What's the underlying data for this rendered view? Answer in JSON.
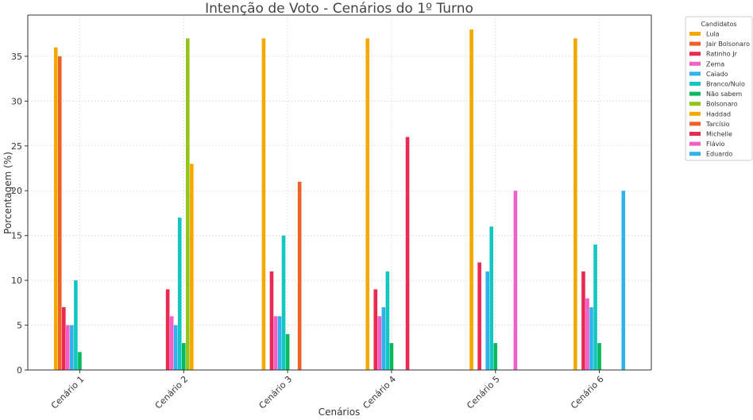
{
  "chart_data": {
    "type": "bar",
    "title": "Intenção de Voto - Cenários do 1º Turno",
    "xlabel": "Cenários",
    "ylabel": "Porcentagem (%)",
    "ylim": [
      0,
      39.6
    ],
    "yticks": [
      0,
      5,
      10,
      15,
      20,
      25,
      30,
      35
    ],
    "grid": true,
    "legend_title": "Candidatos",
    "legend_position": "outside-top-right",
    "categories": [
      "Cenário 1",
      "Cenário 2",
      "Cenário 3",
      "Cenário 4",
      "Cenário 5",
      "Cenário 6"
    ],
    "series": [
      {
        "name": "Lula",
        "color": "#f5a800",
        "values": [
          36,
          null,
          37,
          37,
          38,
          37
        ]
      },
      {
        "name": "Jair Bolsonaro",
        "color": "#f0612a",
        "values": [
          35,
          null,
          null,
          null,
          null,
          null
        ]
      },
      {
        "name": "Ratinho Jr",
        "color": "#ea2a50",
        "values": [
          7,
          9,
          11,
          9,
          12,
          11
        ]
      },
      {
        "name": "Zema",
        "color": "#f060c8",
        "values": [
          5,
          6,
          6,
          6,
          null,
          8
        ]
      },
      {
        "name": "Caiado",
        "color": "#31b2ea",
        "values": [
          5,
          5,
          6,
          7,
          11,
          7
        ]
      },
      {
        "name": "Branco/Nulo",
        "color": "#12c6c1",
        "values": [
          10,
          17,
          15,
          11,
          16,
          14
        ]
      },
      {
        "name": "Não sabem",
        "color": "#07b85c",
        "values": [
          2,
          3,
          4,
          3,
          3,
          3
        ]
      },
      {
        "name": "Bolsonaro",
        "color": "#94c41c",
        "values": [
          null,
          37,
          null,
          null,
          null,
          null
        ]
      },
      {
        "name": "Haddad",
        "color": "#f5a800",
        "values": [
          null,
          23,
          null,
          null,
          null,
          null
        ]
      },
      {
        "name": "Tarcísio",
        "color": "#f0612a",
        "values": [
          null,
          null,
          21,
          null,
          null,
          null
        ]
      },
      {
        "name": "Michelle",
        "color": "#ea2a50",
        "values": [
          null,
          null,
          null,
          26,
          null,
          null
        ]
      },
      {
        "name": "Flávio",
        "color": "#f060c8",
        "values": [
          null,
          null,
          null,
          null,
          20,
          null
        ]
      },
      {
        "name": "Eduardo",
        "color": "#31b2ea",
        "values": [
          null,
          null,
          null,
          null,
          null,
          20
        ]
      }
    ]
  }
}
